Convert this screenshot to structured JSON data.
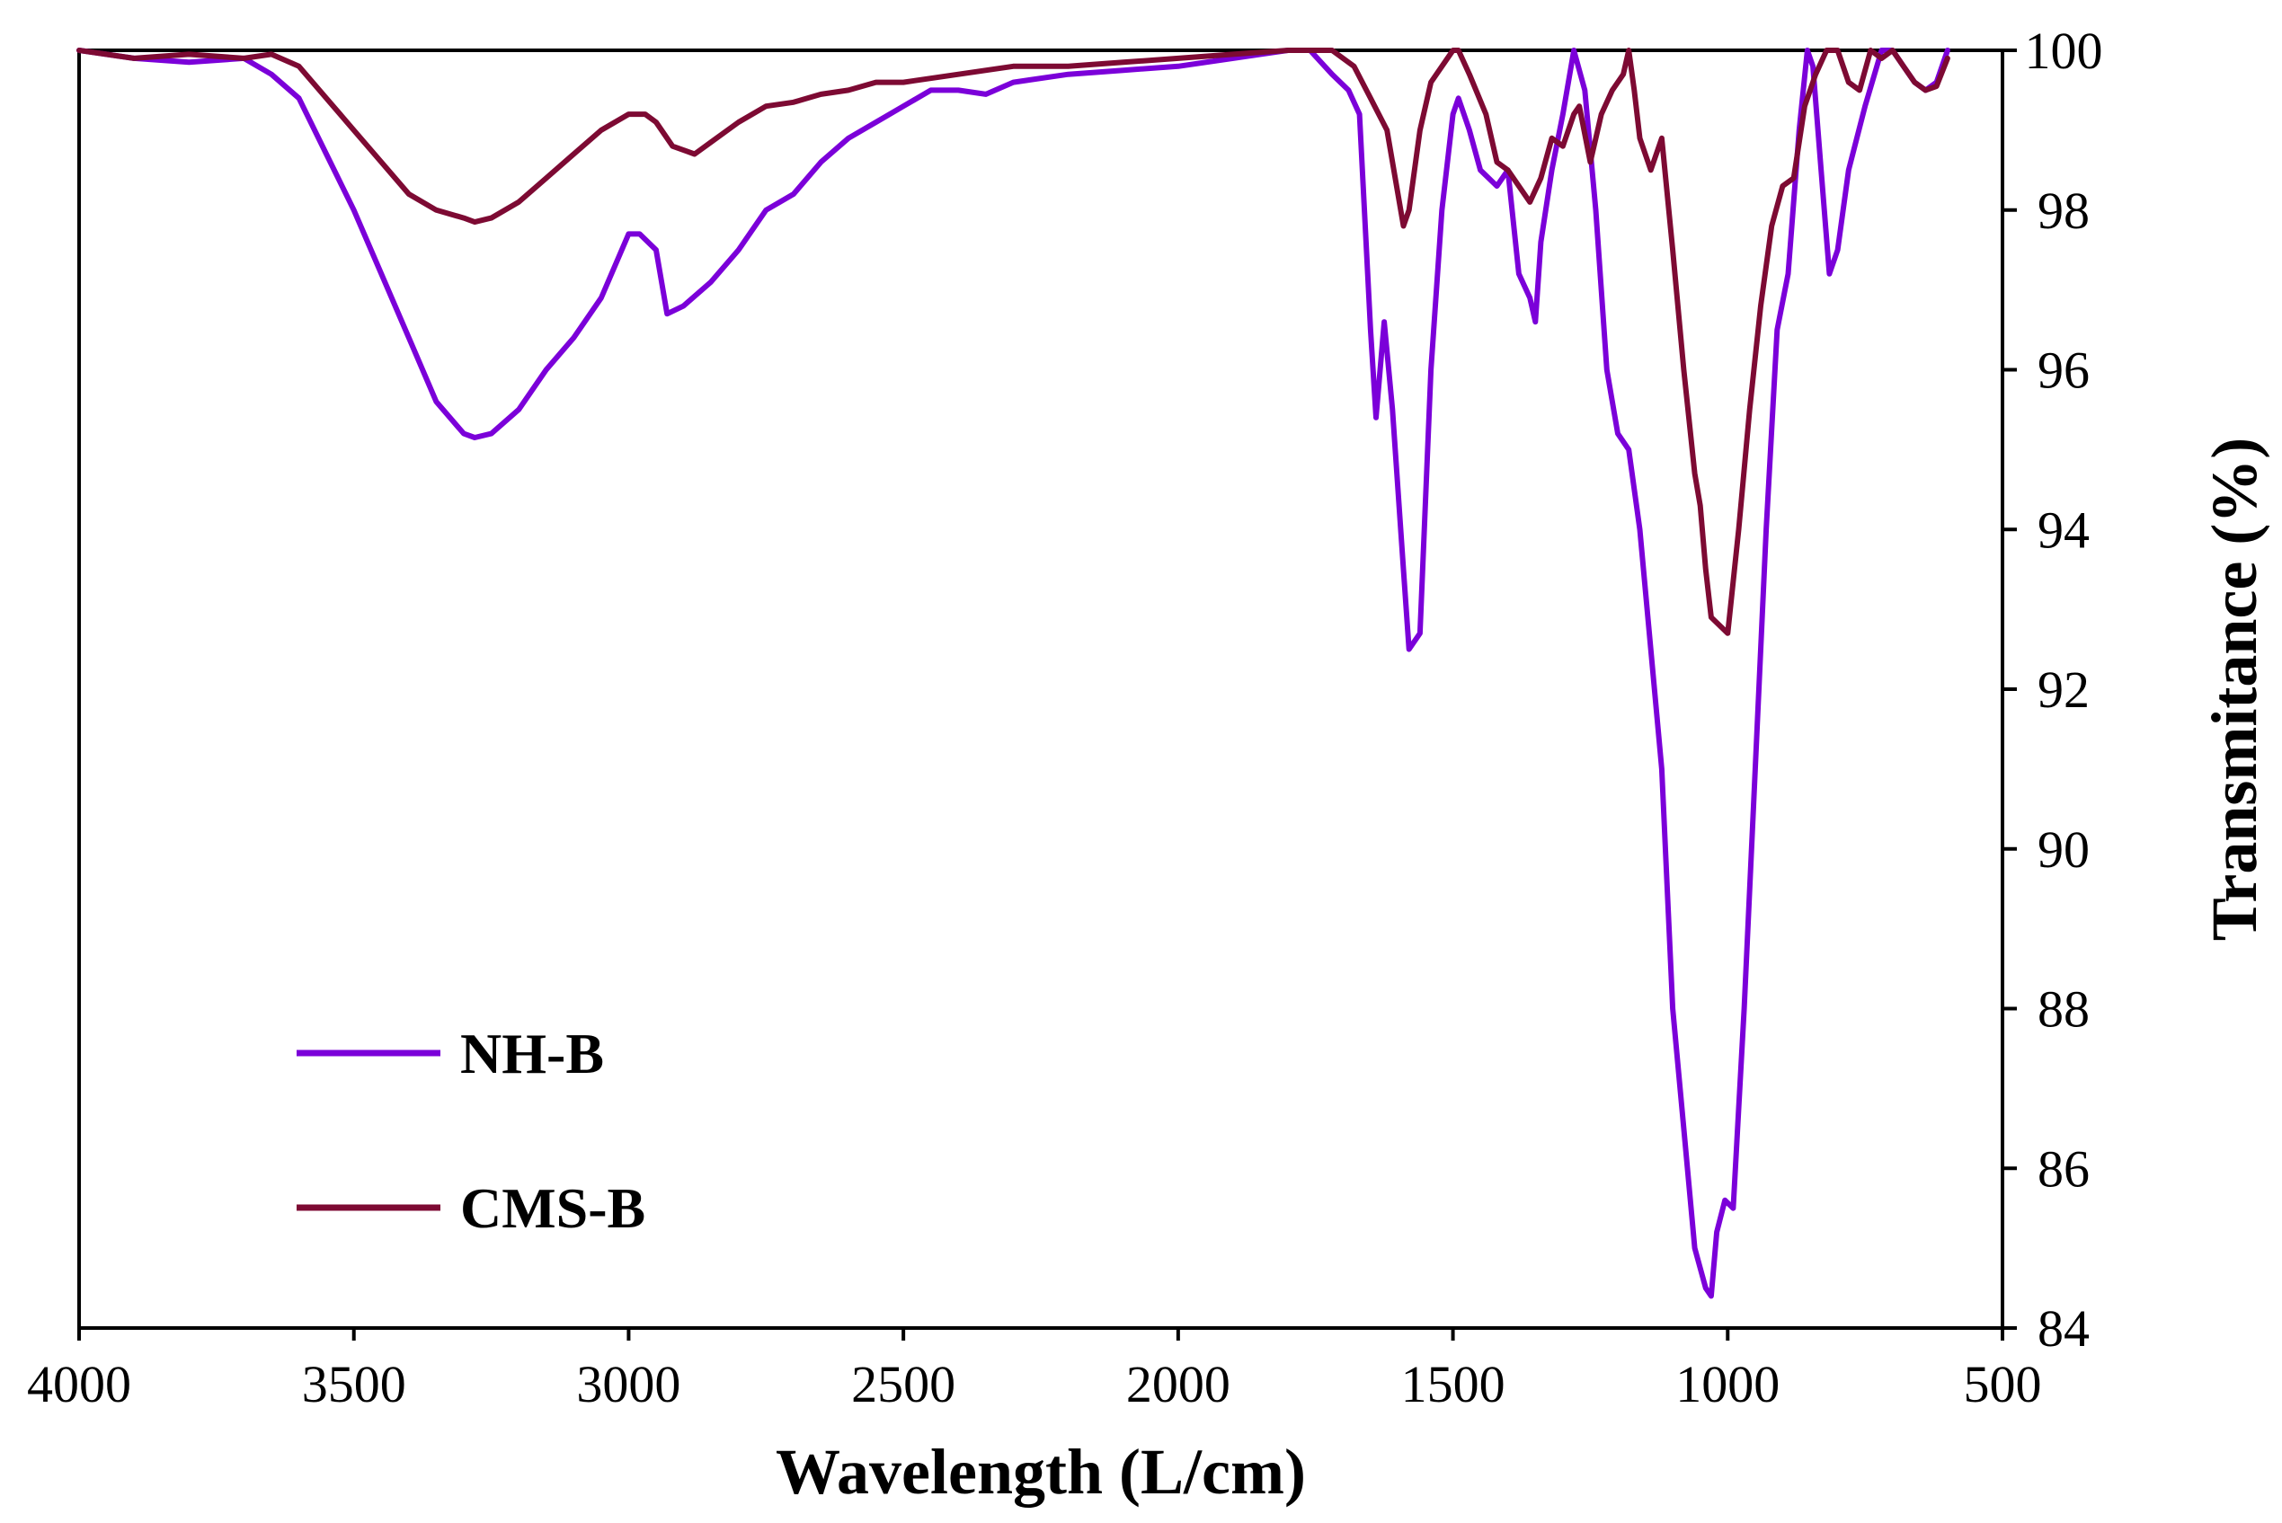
{
  "chart_data": {
    "type": "line",
    "title": "",
    "xlabel": "Wavelength (L/cm)",
    "ylabel": "Transmitance (%)",
    "xlim": [
      4000,
      500
    ],
    "ylim": [
      84,
      100
    ],
    "x_ticks": [
      "4000",
      "3500",
      "3000",
      "2500",
      "2000",
      "1500",
      "1000",
      "500"
    ],
    "y_ticks": [
      "84",
      "86",
      "88",
      "90",
      "92",
      "94",
      "96",
      "98",
      "100"
    ],
    "grid": false,
    "legend_position": "lower-left",
    "series": [
      {
        "name": "NH-B",
        "color": "#7B00D9",
        "points": [
          [
            4000,
            100
          ],
          [
            3900,
            99.9
          ],
          [
            3800,
            99.85
          ],
          [
            3700,
            99.9
          ],
          [
            3650,
            99.7
          ],
          [
            3600,
            99.4
          ],
          [
            3550,
            98.7
          ],
          [
            3500,
            98.0
          ],
          [
            3450,
            97.2
          ],
          [
            3400,
            96.4
          ],
          [
            3350,
            95.6
          ],
          [
            3300,
            95.2
          ],
          [
            3280,
            95.15
          ],
          [
            3250,
            95.2
          ],
          [
            3200,
            95.5
          ],
          [
            3150,
            96.0
          ],
          [
            3100,
            96.4
          ],
          [
            3050,
            96.9
          ],
          [
            3000,
            97.7
          ],
          [
            2980,
            97.7
          ],
          [
            2950,
            97.5
          ],
          [
            2930,
            96.7
          ],
          [
            2900,
            96.8
          ],
          [
            2850,
            97.1
          ],
          [
            2800,
            97.5
          ],
          [
            2750,
            98.0
          ],
          [
            2700,
            98.2
          ],
          [
            2650,
            98.6
          ],
          [
            2600,
            98.9
          ],
          [
            2550,
            99.1
          ],
          [
            2500,
            99.3
          ],
          [
            2450,
            99.5
          ],
          [
            2400,
            99.5
          ],
          [
            2350,
            99.45
          ],
          [
            2300,
            99.6
          ],
          [
            2200,
            99.7
          ],
          [
            2100,
            99.75
          ],
          [
            2000,
            99.8
          ],
          [
            1900,
            99.9
          ],
          [
            1800,
            100
          ],
          [
            1760,
            100
          ],
          [
            1720,
            99.7
          ],
          [
            1690,
            99.5
          ],
          [
            1670,
            99.2
          ],
          [
            1650,
            96.5
          ],
          [
            1640,
            95.4
          ],
          [
            1625,
            96.6
          ],
          [
            1610,
            95.5
          ],
          [
            1590,
            93.5
          ],
          [
            1580,
            92.5
          ],
          [
            1560,
            92.7
          ],
          [
            1540,
            96.0
          ],
          [
            1520,
            98.0
          ],
          [
            1500,
            99.2
          ],
          [
            1490,
            99.4
          ],
          [
            1470,
            99.0
          ],
          [
            1450,
            98.5
          ],
          [
            1420,
            98.3
          ],
          [
            1400,
            98.5
          ],
          [
            1380,
            97.2
          ],
          [
            1360,
            96.9
          ],
          [
            1350,
            96.6
          ],
          [
            1340,
            97.6
          ],
          [
            1320,
            98.5
          ],
          [
            1300,
            99.2
          ],
          [
            1280,
            100
          ],
          [
            1260,
            99.5
          ],
          [
            1240,
            98.0
          ],
          [
            1220,
            96.0
          ],
          [
            1200,
            95.2
          ],
          [
            1180,
            95.0
          ],
          [
            1160,
            94.0
          ],
          [
            1140,
            92.5
          ],
          [
            1120,
            91.0
          ],
          [
            1100,
            88.0
          ],
          [
            1080,
            86.5
          ],
          [
            1060,
            85.0
          ],
          [
            1040,
            84.5
          ],
          [
            1030,
            84.4
          ],
          [
            1020,
            85.2
          ],
          [
            1005,
            85.6
          ],
          [
            990,
            85.5
          ],
          [
            970,
            88.0
          ],
          [
            950,
            91.0
          ],
          [
            930,
            94.0
          ],
          [
            910,
            96.5
          ],
          [
            890,
            97.2
          ],
          [
            870,
            99.0
          ],
          [
            855,
            100
          ],
          [
            845,
            99.8
          ],
          [
            830,
            98.5
          ],
          [
            815,
            97.2
          ],
          [
            800,
            97.5
          ],
          [
            780,
            98.5
          ],
          [
            750,
            99.3
          ],
          [
            720,
            100
          ],
          [
            700,
            100
          ],
          [
            680,
            99.8
          ],
          [
            660,
            99.6
          ],
          [
            640,
            99.5
          ],
          [
            620,
            99.6
          ],
          [
            600,
            100
          ]
        ]
      },
      {
        "name": "CMS-B",
        "color": "#7D0A33",
        "points": [
          [
            4000,
            100
          ],
          [
            3900,
            99.9
          ],
          [
            3800,
            99.95
          ],
          [
            3700,
            99.9
          ],
          [
            3650,
            99.95
          ],
          [
            3600,
            99.8
          ],
          [
            3550,
            99.4
          ],
          [
            3500,
            99.0
          ],
          [
            3450,
            98.6
          ],
          [
            3400,
            98.2
          ],
          [
            3350,
            98.0
          ],
          [
            3300,
            97.9
          ],
          [
            3280,
            97.85
          ],
          [
            3250,
            97.9
          ],
          [
            3200,
            98.1
          ],
          [
            3150,
            98.4
          ],
          [
            3100,
            98.7
          ],
          [
            3050,
            99.0
          ],
          [
            3000,
            99.2
          ],
          [
            2970,
            99.2
          ],
          [
            2950,
            99.1
          ],
          [
            2920,
            98.8
          ],
          [
            2880,
            98.7
          ],
          [
            2850,
            98.85
          ],
          [
            2800,
            99.1
          ],
          [
            2750,
            99.3
          ],
          [
            2700,
            99.35
          ],
          [
            2650,
            99.45
          ],
          [
            2600,
            99.5
          ],
          [
            2550,
            99.6
          ],
          [
            2500,
            99.6
          ],
          [
            2400,
            99.7
          ],
          [
            2300,
            99.8
          ],
          [
            2200,
            99.8
          ],
          [
            2100,
            99.85
          ],
          [
            2000,
            99.9
          ],
          [
            1900,
            99.95
          ],
          [
            1800,
            100
          ],
          [
            1720,
            100
          ],
          [
            1680,
            99.8
          ],
          [
            1650,
            99.4
          ],
          [
            1620,
            99.0
          ],
          [
            1600,
            98.2
          ],
          [
            1590,
            97.8
          ],
          [
            1580,
            98.0
          ],
          [
            1560,
            99.0
          ],
          [
            1540,
            99.6
          ],
          [
            1500,
            100
          ],
          [
            1490,
            100
          ],
          [
            1470,
            99.7
          ],
          [
            1440,
            99.2
          ],
          [
            1420,
            98.6
          ],
          [
            1400,
            98.5
          ],
          [
            1380,
            98.3
          ],
          [
            1360,
            98.1
          ],
          [
            1340,
            98.4
          ],
          [
            1320,
            98.9
          ],
          [
            1300,
            98.8
          ],
          [
            1280,
            99.2
          ],
          [
            1270,
            99.3
          ],
          [
            1250,
            98.6
          ],
          [
            1230,
            99.2
          ],
          [
            1210,
            99.5
          ],
          [
            1190,
            99.7
          ],
          [
            1180,
            100
          ],
          [
            1170,
            99.5
          ],
          [
            1160,
            98.9
          ],
          [
            1140,
            98.5
          ],
          [
            1120,
            98.9
          ],
          [
            1100,
            97.5
          ],
          [
            1080,
            96.0
          ],
          [
            1060,
            94.7
          ],
          [
            1050,
            94.3
          ],
          [
            1040,
            93.5
          ],
          [
            1030,
            92.9
          ],
          [
            1000,
            92.7
          ],
          [
            980,
            94.0
          ],
          [
            960,
            95.5
          ],
          [
            940,
            96.8
          ],
          [
            920,
            97.8
          ],
          [
            900,
            98.3
          ],
          [
            880,
            98.4
          ],
          [
            860,
            99.3
          ],
          [
            840,
            99.7
          ],
          [
            820,
            100
          ],
          [
            800,
            100
          ],
          [
            780,
            99.6
          ],
          [
            760,
            99.5
          ],
          [
            740,
            100
          ],
          [
            720,
            99.9
          ],
          [
            700,
            100
          ],
          [
            680,
            99.8
          ],
          [
            660,
            99.6
          ],
          [
            640,
            99.5
          ],
          [
            620,
            99.55
          ],
          [
            600,
            99.9
          ]
        ]
      }
    ]
  }
}
